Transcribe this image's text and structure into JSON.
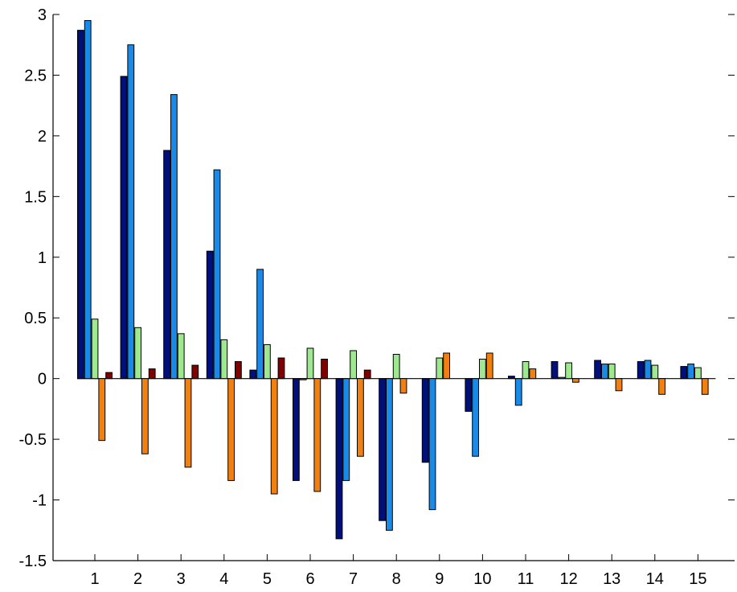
{
  "chart_data": {
    "type": "bar",
    "title": "",
    "xlabel": "",
    "ylabel": "",
    "categories": [
      "1",
      "2",
      "3",
      "4",
      "5",
      "6",
      "7",
      "8",
      "9",
      "10",
      "11",
      "12",
      "13",
      "14",
      "15"
    ],
    "ylim": [
      -1.5,
      3
    ],
    "yticks": [
      "-1.5",
      "-1",
      "-0.5",
      "0",
      "0.5",
      "1",
      "1.5",
      "2",
      "2.5",
      "3"
    ],
    "grid": false,
    "legend": "none",
    "series": [
      {
        "color": "#00107a",
        "values": [
          2.87,
          2.49,
          1.88,
          1.05,
          0.07,
          -0.84,
          -1.32,
          -1.17,
          -0.69,
          -0.27,
          0.02,
          0.14,
          0.15,
          0.14,
          0.1
        ]
      },
      {
        "color": "#1a8ae8",
        "values": [
          2.95,
          2.75,
          2.34,
          1.72,
          0.9,
          -0.01,
          -0.84,
          -1.25,
          -1.08,
          -0.64,
          -0.22,
          0.01,
          0.12,
          0.15,
          0.12
        ]
      },
      {
        "color": "#9ee890",
        "values": [
          0.49,
          0.42,
          0.37,
          0.32,
          0.28,
          0.25,
          0.23,
          0.2,
          0.17,
          0.16,
          0.14,
          0.13,
          0.12,
          0.11,
          0.09
        ]
      },
      {
        "color": "#f28010",
        "values": [
          -0.51,
          -0.62,
          -0.73,
          -0.84,
          -0.95,
          -0.93,
          -0.64,
          -0.12,
          0.21,
          0.21,
          0.08,
          -0.03,
          -0.1,
          -0.13,
          -0.13
        ]
      },
      {
        "color": "#800000",
        "values": [
          0.05,
          0.08,
          0.11,
          0.14,
          0.17,
          0.16,
          0.07,
          0,
          0,
          0,
          0,
          0,
          0,
          0,
          0
        ]
      }
    ]
  }
}
